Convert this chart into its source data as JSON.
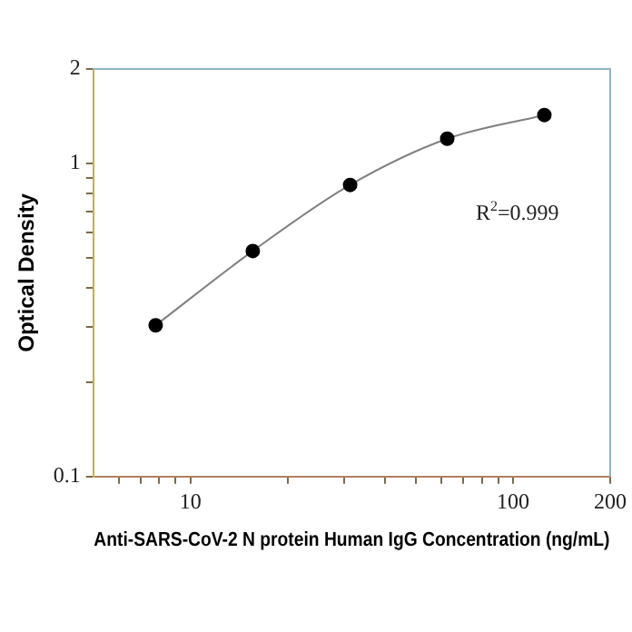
{
  "chart_data": {
    "type": "line",
    "xlabel": "Anti-SARS-CoV-2 N protein Human IgG Concentration (ng/mL)",
    "ylabel": "Optical Density",
    "x": [
      7.8,
      15.6,
      31.25,
      62.5,
      125
    ],
    "series": [
      {
        "color": "#000000",
        "values": [
          0.304,
          0.525,
          0.853,
          1.198,
          1.426
        ]
      }
    ],
    "log": "xy",
    "xlim": [
      5,
      200
    ],
    "ylim": [
      0.1,
      2
    ],
    "xticks": [
      {
        "value": 6,
        "label": null
      },
      {
        "value": 7,
        "label": null
      },
      {
        "value": 8,
        "label": null
      },
      {
        "value": 9,
        "label": null
      },
      10,
      {
        "value": 20,
        "label": null
      },
      {
        "value": 30,
        "label": null
      },
      {
        "value": 40,
        "label": null
      },
      {
        "value": 50,
        "label": null
      },
      {
        "value": 60,
        "label": null
      },
      {
        "value": 70,
        "label": null
      },
      {
        "value": 80,
        "label": null
      },
      {
        "value": 90,
        "label": null
      },
      100,
      200
    ],
    "yticks": [
      0.1,
      {
        "value": 0.2,
        "label": null
      },
      {
        "value": 0.3,
        "label": null
      },
      {
        "value": 0.4,
        "label": null
      },
      {
        "value": 0.5,
        "label": null
      },
      {
        "value": 0.6,
        "label": null
      },
      {
        "value": 0.7,
        "label": null
      },
      {
        "value": 0.8,
        "label": null
      },
      {
        "value": 0.9,
        "label": null
      },
      1,
      2
    ],
    "annotations": [
      "R$^{2}$=0.999"
    ],
    "grid": false,
    "legend": false,
    "marker": "circle",
    "line_style": "solid"
  }
}
